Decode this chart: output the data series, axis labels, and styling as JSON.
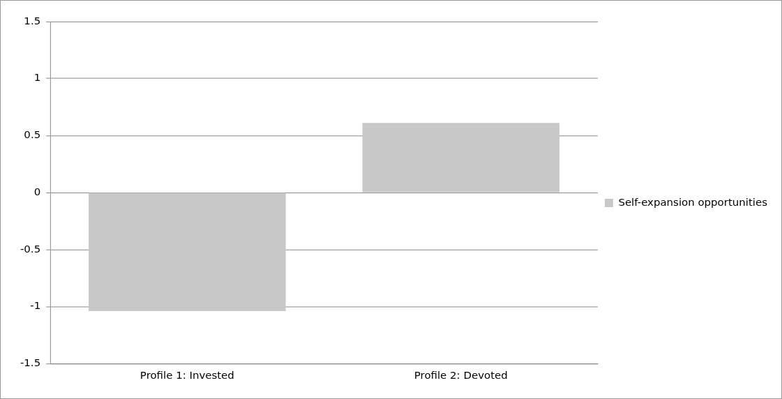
{
  "chart_data": {
    "type": "bar",
    "categories": [
      "Profile 1: Invested",
      "Profile 2: Devoted"
    ],
    "series": [
      {
        "name": "Self-expansion opportunities",
        "color": "#c8c8c8",
        "values": [
          -1.04,
          0.61
        ]
      }
    ],
    "ylim": [
      -1.5,
      1.5
    ],
    "yticks": [
      -1.5,
      -1,
      -0.5,
      0,
      0.5,
      1,
      1.5
    ],
    "grid": "y",
    "legend": "right"
  }
}
